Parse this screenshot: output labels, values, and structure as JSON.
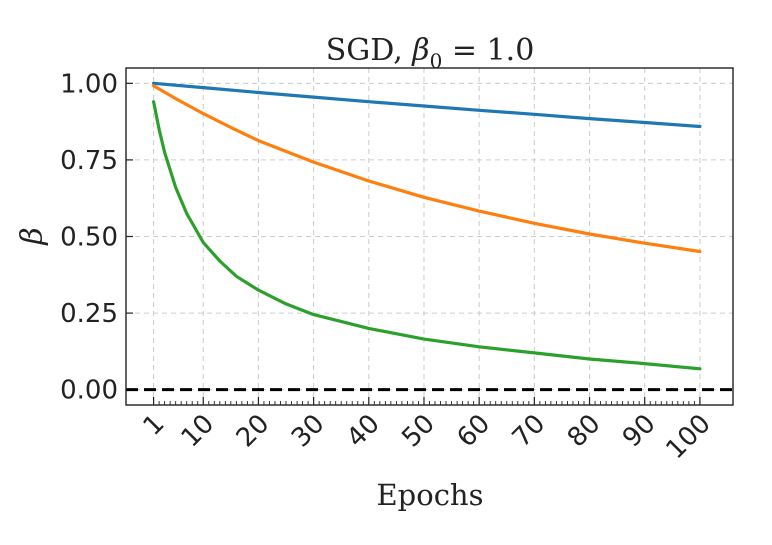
{
  "chart_data": {
    "type": "line",
    "title": {
      "prefix": "SGD, ",
      "symbol": "β",
      "subscript": "0",
      "suffix": " = 1.0"
    },
    "xlabel": "Epochs",
    "ylabel": "β",
    "xlim": [
      -4,
      106
    ],
    "ylim": [
      -0.05,
      1.05
    ],
    "grid": true,
    "grid_style": "dashed",
    "xticks": [
      1,
      10,
      20,
      30,
      40,
      50,
      60,
      70,
      80,
      90,
      100
    ],
    "xtick_labels": [
      "1",
      "10",
      "20",
      "30",
      "40",
      "50",
      "60",
      "70",
      "80",
      "90",
      "100"
    ],
    "yticks": [
      0.0,
      0.25,
      0.5,
      0.75,
      1.0
    ],
    "ytick_labels": [
      "0.00",
      "0.25",
      "0.50",
      "0.75",
      "1.00"
    ],
    "hline": {
      "y": 0.0,
      "color": "#000000",
      "style": "dashed"
    },
    "series": [
      {
        "color": "#1f77b4",
        "x": [
          1,
          10,
          20,
          30,
          40,
          50,
          60,
          70,
          80,
          90,
          100
        ],
        "y": [
          1.0,
          0.986,
          0.97,
          0.955,
          0.94,
          0.926,
          0.912,
          0.899,
          0.885,
          0.872,
          0.859
        ]
      },
      {
        "color": "#ff7f0e",
        "x": [
          1,
          5,
          10,
          15,
          20,
          30,
          40,
          50,
          60,
          70,
          80,
          90,
          100
        ],
        "y": [
          0.992,
          0.95,
          0.901,
          0.856,
          0.813,
          0.743,
          0.681,
          0.628,
          0.583,
          0.543,
          0.508,
          0.478,
          0.451
        ]
      },
      {
        "color": "#2ca02c",
        "x": [
          1,
          2,
          3,
          5,
          7,
          10,
          13,
          16,
          20,
          25,
          30,
          40,
          50,
          60,
          70,
          80,
          90,
          100
        ],
        "y": [
          0.94,
          0.85,
          0.775,
          0.66,
          0.575,
          0.48,
          0.42,
          0.37,
          0.325,
          0.28,
          0.245,
          0.2,
          0.165,
          0.14,
          0.12,
          0.1,
          0.085,
          0.068
        ]
      }
    ]
  }
}
